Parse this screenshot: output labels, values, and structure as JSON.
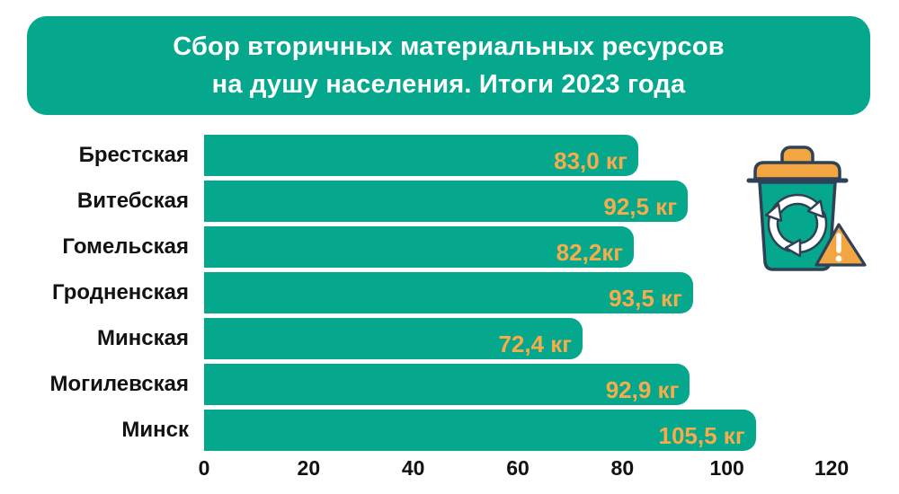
{
  "title": {
    "line1": "Сбор вторичных материальных ресурсов",
    "line2": "на душу населения. Итоги 2023 года"
  },
  "chart_data": {
    "type": "bar",
    "orientation": "horizontal",
    "title": "Сбор вторичных материальных ресурсов на душу населения. Итоги 2023 года",
    "unit": "кг",
    "categories": [
      "Брестская",
      "Витебская",
      "Гомельская",
      "Гродненская",
      "Минская",
      "Могилевская",
      "Минск"
    ],
    "values": [
      83.0,
      92.5,
      82.2,
      93.5,
      72.4,
      92.9,
      105.5
    ],
    "value_labels": [
      "83,0 кг",
      "92,5 кг",
      "82,2кг",
      "93,5 кг",
      "72,4 кг",
      "92,9 кг",
      "105,5 кг"
    ],
    "x_ticks": [
      "0",
      "20",
      "40",
      "60",
      "80",
      "100",
      "120"
    ],
    "xlim": [
      0,
      120
    ],
    "grid": false,
    "legend": false,
    "bar_color": "#05a88c",
    "value_label_color": "#f5ac4a"
  },
  "icon": {
    "name": "recycling-bin-with-warning",
    "colors": {
      "bin_body": "#05a88c",
      "lid": "#f2a540",
      "outline": "#2f4156",
      "arrows": "#ffffff",
      "triangle_fill": "#f2a540",
      "exclamation": "#ffffff"
    }
  },
  "colors": {
    "background": "#ffffff",
    "banner": "#05a88c",
    "banner_text": "#ffffff",
    "category_text": "#121212",
    "axis_text": "#121212"
  }
}
